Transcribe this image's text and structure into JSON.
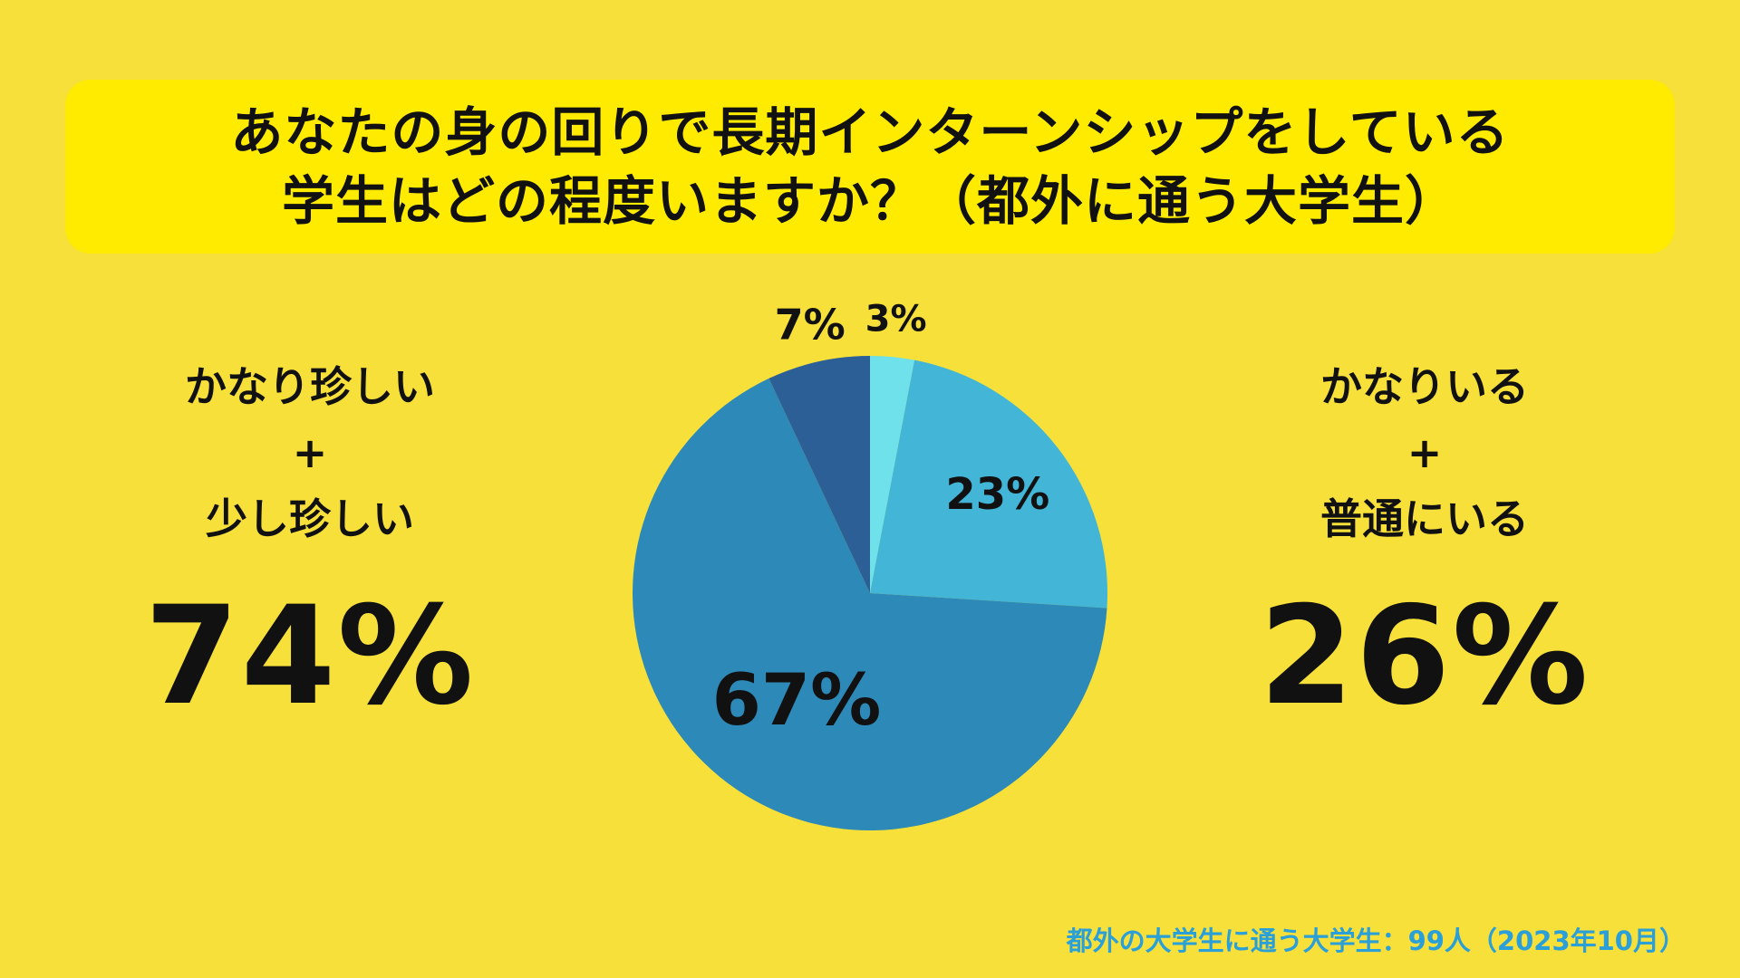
{
  "title": {
    "line1": "あなたの身の回りで長期インターンシップをしている",
    "line2": "学生はどの程度いますか？（都外に通う大学生）"
  },
  "left_summary": {
    "label_line1": "かなり珍しい",
    "plus": "+",
    "label_line2": "少し珍しい",
    "value": "74%"
  },
  "right_summary": {
    "label_line1": "かなりいる",
    "plus": "+",
    "label_line2": "普通にいる",
    "value": "26%"
  },
  "chart_data": {
    "type": "pie",
    "start_angle_deg": 0,
    "direction": "clockwise",
    "slices": [
      {
        "value": 3,
        "label": "3%",
        "color": "#6fe1ea"
      },
      {
        "value": 23,
        "label": "23%",
        "color": "#43b5d6"
      },
      {
        "value": 67,
        "label": "67%",
        "color": "#2d89b8"
      },
      {
        "value": 7,
        "label": "7%",
        "color": "#2b5f96"
      }
    ]
  },
  "footnote": "都外の大学生に通う大学生：99人（2023年10月）"
}
